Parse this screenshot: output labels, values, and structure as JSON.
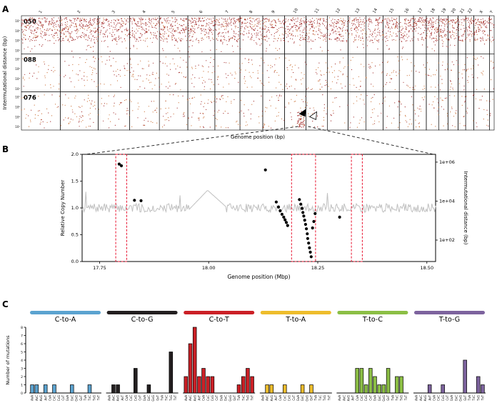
{
  "panels": {
    "a": "A",
    "b": "B",
    "c": "C"
  },
  "colors": {
    "background": "#ffffff",
    "dot_dark_red": "#9b1b1b",
    "dot_orange": "#c8682a",
    "cn_line": "#c0c0c0",
    "highlight_red": "#e8112d",
    "mutation_dot": "#000000"
  },
  "chart_data": [
    {
      "id": "rainfall",
      "type": "scatter",
      "panel": "A",
      "ylabel": "Intermutational distance (bp)",
      "xlabel": "Genome position (bp)",
      "ytick_labels": [
        "10⁷",
        "10⁵",
        "10³",
        "10¹"
      ],
      "chromosomes": [
        "1",
        "2",
        "3",
        "4",
        "5",
        "6",
        "7",
        "8",
        "9",
        "10",
        "11",
        "12",
        "13",
        "14",
        "15",
        "16",
        "17",
        "18",
        "19",
        "20",
        "21",
        "22",
        "X",
        "Y"
      ],
      "chromosome_rel_widths": [
        8.2,
        8.0,
        6.6,
        6.3,
        6.0,
        5.7,
        5.3,
        4.8,
        4.6,
        4.5,
        4.5,
        4.4,
        3.8,
        3.6,
        3.4,
        3.0,
        2.7,
        2.6,
        2.0,
        2.1,
        1.6,
        1.7,
        3.3,
        1.0
      ],
      "samples": [
        {
          "name": "050",
          "density": "high",
          "n_points": 2600,
          "seed": 11
        },
        {
          "name": "088",
          "density": "low",
          "n_points": 520,
          "seed": 22
        },
        {
          "name": "076",
          "density": "low",
          "n_points": 500,
          "seed": 33,
          "kataegis": {
            "chromosome": "10",
            "n_points": 45,
            "seed": 77
          }
        }
      ],
      "annotations": {
        "arrows": [
          "filled-arrowhead",
          "open-arrowhead"
        ]
      }
    },
    {
      "id": "copy-number-zoom",
      "type": "line+scatter",
      "panel": "B",
      "xlabel": "Genome position (Mbp)",
      "ylabel_left": "Relative Copy Number",
      "ylabel_right": "Intermutational distance (bp)",
      "xlim": [
        17.71,
        18.52
      ],
      "xtick_values": [
        17.75,
        18.0,
        18.25,
        18.5
      ],
      "xtick_labels": [
        "17.75",
        "18.00",
        "18.25",
        "18.50"
      ],
      "ylim_left": [
        0,
        2
      ],
      "ytick_values_left": [
        0,
        0.5,
        1,
        1.5,
        2
      ],
      "ytick_labels_left": [
        "0.0",
        "0.5",
        "1.0",
        "1.5",
        "2.0"
      ],
      "ytick_values_right": [
        1000000,
        10000,
        100
      ],
      "ytick_labels_right": [
        "1e+06",
        "1e+04",
        "1e+02"
      ],
      "highlight_regions": [
        [
          17.787,
          17.812
        ],
        [
          18.19,
          18.245
        ],
        [
          18.327,
          18.352
        ]
      ],
      "line": {
        "seed": 7,
        "n": 380,
        "base": 1.0,
        "noise": 0.16,
        "spike_prob": 0.03,
        "smooth_segment": {
          "x0": 17.955,
          "x1": 18.04,
          "peak": 1.33
        }
      },
      "mutations": [
        [
          17.795,
          800000
        ],
        [
          17.8,
          650000
        ],
        [
          17.83,
          11000
        ],
        [
          17.845,
          10500
        ],
        [
          18.13,
          400000
        ],
        [
          18.155,
          9000
        ],
        [
          18.16,
          5000
        ],
        [
          18.164,
          3200
        ],
        [
          18.168,
          2100
        ],
        [
          18.172,
          1500
        ],
        [
          18.175,
          1100
        ],
        [
          18.178,
          800
        ],
        [
          18.181,
          560
        ],
        [
          18.208,
          12000
        ],
        [
          18.211,
          7000
        ],
        [
          18.214,
          4200
        ],
        [
          18.216,
          2600
        ],
        [
          18.218,
          1700
        ],
        [
          18.22,
          1050
        ],
        [
          18.222,
          640
        ],
        [
          18.224,
          380
        ],
        [
          18.226,
          210
        ],
        [
          18.227,
          120
        ],
        [
          18.229,
          70
        ],
        [
          18.231,
          40
        ],
        [
          18.233,
          24
        ],
        [
          18.235,
          14
        ],
        [
          18.238,
          420
        ],
        [
          18.241,
          900
        ],
        [
          18.244,
          2300
        ],
        [
          18.3,
          1500
        ]
      ]
    },
    {
      "id": "mutation-signatures",
      "type": "bar",
      "panel": "C",
      "ylabel": "Number of mutations",
      "ylim": [
        0,
        8
      ],
      "yticks": [
        0,
        1,
        2,
        3,
        4,
        5,
        6,
        7,
        8
      ],
      "categories": [
        "AxA",
        "AxC",
        "AxG",
        "AxT",
        "CxA",
        "CxC",
        "CxG",
        "CxT",
        "GxA",
        "GxC",
        "GxG",
        "GxT",
        "TxA",
        "TxC",
        "TxG",
        "TxT"
      ],
      "groups": [
        {
          "name": "C-to-A",
          "color": "#5ba3d0",
          "values": [
            1,
            1,
            0,
            1,
            0,
            1,
            0,
            0,
            0,
            1,
            0,
            0,
            0,
            1,
            0,
            0
          ]
        },
        {
          "name": "C-to-G",
          "color": "#231f20",
          "values": [
            0,
            1,
            1,
            0,
            0,
            0,
            3,
            0,
            0,
            1,
            0,
            0,
            0,
            0,
            5,
            0
          ]
        },
        {
          "name": "C-to-T",
          "color": "#cb2026",
          "values": [
            2,
            6,
            8,
            2,
            3,
            2,
            2,
            0,
            0,
            0,
            0,
            0,
            1,
            2,
            3,
            2
          ]
        },
        {
          "name": "T-to-A",
          "color": "#eebd2c",
          "values": [
            0,
            1,
            1,
            0,
            0,
            1,
            0,
            0,
            0,
            1,
            0,
            1,
            0,
            0,
            0,
            0
          ]
        },
        {
          "name": "T-to-C",
          "color": "#8cbf45",
          "values": [
            0,
            0,
            0,
            0,
            3,
            3,
            1,
            3,
            2,
            1,
            1,
            3,
            0,
            2,
            2,
            0
          ]
        },
        {
          "name": "T-to-G",
          "color": "#7d639e",
          "values": [
            0,
            0,
            0,
            1,
            0,
            0,
            1,
            0,
            0,
            0,
            0,
            4,
            0,
            0,
            2,
            1
          ]
        }
      ]
    }
  ]
}
